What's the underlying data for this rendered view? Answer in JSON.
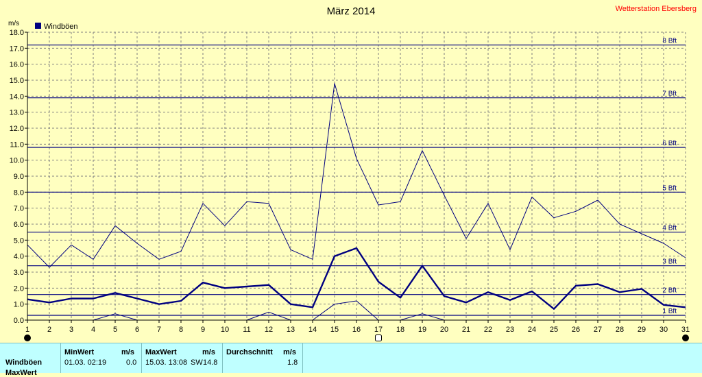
{
  "chart_data": {
    "type": "line",
    "title": "März 2014",
    "source": "Wetterstation Ebersberg",
    "ylabel": "m/s",
    "ylim": [
      0,
      18
    ],
    "yticks": [
      "0.0",
      "1.0",
      "2.0",
      "3.0",
      "4.0",
      "5.0",
      "6.0",
      "7.0",
      "8.0",
      "9.0",
      "10.0",
      "11.0",
      "12.0",
      "13.0",
      "14.0",
      "15.0",
      "16.0",
      "17.0",
      "18.0"
    ],
    "grid": true,
    "legend": {
      "position": "top-left",
      "entries": [
        "Windböen"
      ]
    },
    "colors": {
      "series": "#000080",
      "source": "#ff0000",
      "background": "#ffffc0",
      "grid": "#808080",
      "stats_background": "#bfffff"
    },
    "x": [
      1,
      2,
      3,
      4,
      5,
      6,
      7,
      8,
      9,
      10,
      11,
      12,
      13,
      14,
      15,
      16,
      17,
      18,
      19,
      20,
      21,
      22,
      23,
      24,
      25,
      26,
      27,
      28,
      29,
      30,
      31
    ],
    "series": [
      {
        "name": "Windböen",
        "role": "mean",
        "values": [
          1.3,
          1.1,
          1.35,
          1.35,
          1.7,
          1.35,
          1.0,
          1.2,
          2.35,
          2.0,
          2.1,
          2.2,
          1.0,
          0.8,
          4.0,
          4.5,
          2.4,
          1.4,
          3.4,
          1.5,
          1.1,
          1.75,
          1.25,
          1.8,
          0.7,
          2.15,
          2.25,
          1.75,
          1.95,
          0.95,
          0.8
        ]
      },
      {
        "name": "",
        "role": "max",
        "values": [
          4.7,
          3.3,
          4.7,
          3.8,
          5.9,
          4.8,
          3.8,
          4.3,
          7.3,
          5.9,
          7.4,
          7.3,
          4.4,
          3.8,
          14.8,
          10.1,
          7.2,
          7.4,
          10.6,
          7.8,
          5.1,
          7.3,
          4.4,
          7.7,
          6.4,
          6.8,
          7.5,
          6.0,
          5.4,
          4.8,
          3.9
        ]
      },
      {
        "name": "",
        "role": "min",
        "values": [
          0,
          0,
          0,
          0,
          0.4,
          0,
          0,
          0,
          0,
          0,
          0,
          0.5,
          0,
          0,
          1.0,
          1.2,
          0,
          0,
          0.4,
          0,
          0,
          0,
          0,
          0,
          0,
          0,
          0,
          0,
          0,
          0,
          0
        ]
      }
    ],
    "reference_lines": [
      {
        "label": "1 Bft",
        "value": 0.3
      },
      {
        "label": "2 Bft",
        "value": 1.6
      },
      {
        "label": "3 Bft",
        "value": 3.4
      },
      {
        "label": "4 Bft",
        "value": 5.5
      },
      {
        "label": "5 Bft",
        "value": 8.0
      },
      {
        "label": "6 Bft",
        "value": 10.8
      },
      {
        "label": "7 Bft",
        "value": 13.9
      },
      {
        "label": "8 Bft",
        "value": 17.2
      }
    ],
    "markers": [
      {
        "x": 1,
        "style": "filled"
      },
      {
        "x": 17,
        "style": "open"
      },
      {
        "x": 31,
        "style": "filled"
      }
    ]
  },
  "stats": {
    "headers": {
      "min": "MinWert",
      "max": "MaxWert",
      "avg": "Durchschnitt",
      "unit": "m/s"
    },
    "rows": [
      {
        "label": "Windböen",
        "min_time": "01.03.  02:19",
        "min_value": "0.0",
        "max_time": "15.03.  13:08",
        "max_dir": "SW",
        "max_value": "14.8",
        "avg_value": "1.8"
      },
      {
        "label": "MaxWert"
      }
    ]
  }
}
